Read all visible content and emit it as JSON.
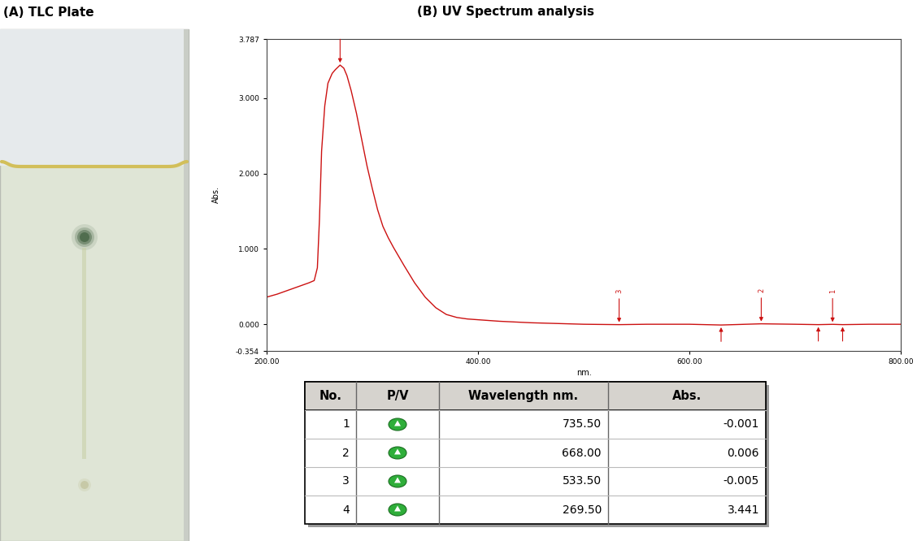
{
  "chart_data": {
    "type": "line",
    "title": "(B) UV Spectrum analysis",
    "x_label": "nm.",
    "y_label": "Abs.",
    "color": "#cc1111",
    "x": [
      200,
      210,
      220,
      230,
      240,
      245,
      248,
      250,
      252,
      255,
      258,
      262,
      265,
      269.5,
      273,
      276,
      280,
      285,
      290,
      295,
      300,
      305,
      310,
      315,
      320,
      330,
      340,
      350,
      360,
      370,
      380,
      390,
      400,
      420,
      450,
      500,
      533.5,
      560,
      600,
      630,
      668,
      700,
      722,
      735.5,
      745,
      770,
      800
    ],
    "values": [
      0.36,
      0.4,
      0.45,
      0.5,
      0.55,
      0.58,
      0.75,
      1.4,
      2.3,
      2.9,
      3.2,
      3.33,
      3.38,
      3.441,
      3.4,
      3.3,
      3.1,
      2.8,
      2.45,
      2.1,
      1.8,
      1.52,
      1.3,
      1.15,
      1.02,
      0.78,
      0.55,
      0.36,
      0.22,
      0.13,
      0.09,
      0.07,
      0.06,
      0.04,
      0.02,
      0.0,
      -0.005,
      0.0,
      0.0,
      -0.01,
      0.006,
      0.0,
      -0.005,
      -0.001,
      -0.005,
      0.0,
      0.0
    ],
    "xlim": [
      200,
      800
    ],
    "xticks": [
      {
        "value": 200,
        "label": "200.00"
      },
      {
        "value": 400,
        "label": "400.00"
      },
      {
        "value": 600,
        "label": "600.00"
      },
      {
        "value": 800,
        "label": "800.00"
      }
    ],
    "ylim": [
      -0.354,
      3.787
    ],
    "yticks": [
      {
        "value": -0.354,
        "label": "-0.354"
      },
      {
        "value": 0,
        "label": "0.000"
      },
      {
        "value": 1,
        "label": "1.000"
      },
      {
        "value": 2,
        "label": "2.000"
      },
      {
        "value": 3,
        "label": "3.000"
      },
      {
        "value": 3.787,
        "label": "3.787"
      }
    ],
    "grid": false,
    "peaks": [
      {
        "x": 735.5,
        "label": "1"
      },
      {
        "x": 668,
        "label": "2"
      },
      {
        "x": 533.5,
        "label": "3"
      },
      {
        "x": 269.5
      }
    ],
    "valleys": [
      {
        "x": 630
      },
      {
        "x": 722
      },
      {
        "x": 745
      }
    ]
  },
  "tlc_plate": {
    "title": "(A) TLC Plate"
  },
  "table": {
    "header": [
      "No.",
      "P/V",
      "Wavelength nm.",
      "Abs."
    ],
    "rows": [
      {
        "no": 1,
        "wavelength": "735.50",
        "abs": "-0.001"
      },
      {
        "no": 2,
        "wavelength": "668.00",
        "abs": "0.006"
      },
      {
        "no": 3,
        "wavelength": "533.50",
        "abs": "-0.005"
      },
      {
        "no": 4,
        "wavelength": "269.50",
        "abs": "3.441"
      }
    ]
  }
}
